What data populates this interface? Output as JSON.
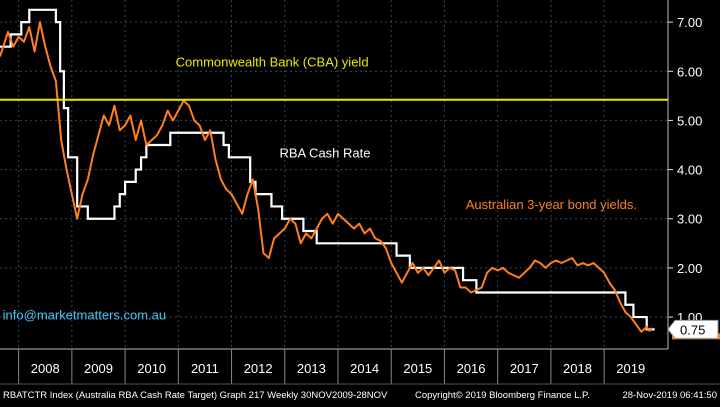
{
  "chart_data": {
    "type": "line",
    "title": "",
    "xlabel": "",
    "ylabel": "",
    "xlim": [
      2007.65,
      2020.2
    ],
    "ylim": [
      0.35,
      7.45
    ],
    "grid": true,
    "x_ticks": [
      "2008",
      "2009",
      "2010",
      "2011",
      "2012",
      "2013",
      "2014",
      "2015",
      "2016",
      "2017",
      "2018",
      "2019"
    ],
    "y_ticks": [
      1.0,
      2.0,
      3.0,
      4.0,
      5.0,
      6.0,
      7.0
    ],
    "y_tick_labels": [
      "1.00",
      "2.00",
      "3.00",
      "4.00",
      "5.00",
      "6.00",
      "7.00"
    ],
    "series": [
      {
        "name": "RBA Cash Rate",
        "color": "#ffffff",
        "style": "step",
        "points": [
          [
            2007.65,
            6.5
          ],
          [
            2007.85,
            6.75
          ],
          [
            2008.05,
            7.0
          ],
          [
            2008.2,
            7.25
          ],
          [
            2008.7,
            7.0
          ],
          [
            2008.78,
            6.0
          ],
          [
            2008.85,
            5.25
          ],
          [
            2008.93,
            4.25
          ],
          [
            2009.1,
            3.25
          ],
          [
            2009.3,
            3.0
          ],
          [
            2009.8,
            3.25
          ],
          [
            2009.9,
            3.5
          ],
          [
            2010.0,
            3.75
          ],
          [
            2010.2,
            4.0
          ],
          [
            2010.3,
            4.25
          ],
          [
            2010.4,
            4.5
          ],
          [
            2010.85,
            4.75
          ],
          [
            2011.85,
            4.5
          ],
          [
            2011.95,
            4.25
          ],
          [
            2012.35,
            3.75
          ],
          [
            2012.45,
            3.5
          ],
          [
            2012.75,
            3.25
          ],
          [
            2012.95,
            3.0
          ],
          [
            2013.35,
            2.75
          ],
          [
            2013.6,
            2.5
          ],
          [
            2015.1,
            2.25
          ],
          [
            2015.35,
            2.0
          ],
          [
            2016.35,
            1.75
          ],
          [
            2016.6,
            1.5
          ],
          [
            2019.4,
            1.25
          ],
          [
            2019.55,
            1.0
          ],
          [
            2019.8,
            0.75
          ],
          [
            2019.95,
            0.75
          ]
        ]
      },
      {
        "name": "Australian 3-year bond yields.",
        "color": "#ff7f1f",
        "style": "line",
        "points": [
          [
            2007.65,
            6.3
          ],
          [
            2007.8,
            6.8
          ],
          [
            2007.9,
            6.5
          ],
          [
            2008.0,
            6.7
          ],
          [
            2008.1,
            6.6
          ],
          [
            2008.2,
            6.9
          ],
          [
            2008.3,
            6.4
          ],
          [
            2008.4,
            7.0
          ],
          [
            2008.5,
            6.5
          ],
          [
            2008.6,
            6.1
          ],
          [
            2008.7,
            5.8
          ],
          [
            2008.8,
            4.6
          ],
          [
            2008.9,
            4.0
          ],
          [
            2009.0,
            3.5
          ],
          [
            2009.1,
            3.0
          ],
          [
            2009.2,
            3.5
          ],
          [
            2009.3,
            3.8
          ],
          [
            2009.4,
            4.3
          ],
          [
            2009.5,
            4.7
          ],
          [
            2009.6,
            5.1
          ],
          [
            2009.7,
            4.9
          ],
          [
            2009.8,
            5.3
          ],
          [
            2009.9,
            4.8
          ],
          [
            2010.0,
            4.9
          ],
          [
            2010.1,
            5.1
          ],
          [
            2010.2,
            4.6
          ],
          [
            2010.3,
            5.0
          ],
          [
            2010.4,
            4.5
          ],
          [
            2010.5,
            4.6
          ],
          [
            2010.6,
            4.7
          ],
          [
            2010.7,
            4.9
          ],
          [
            2010.8,
            5.2
          ],
          [
            2010.9,
            5.0
          ],
          [
            2011.0,
            5.2
          ],
          [
            2011.1,
            5.4
          ],
          [
            2011.2,
            5.3
          ],
          [
            2011.3,
            5.0
          ],
          [
            2011.4,
            4.9
          ],
          [
            2011.5,
            4.6
          ],
          [
            2011.6,
            4.8
          ],
          [
            2011.7,
            4.2
          ],
          [
            2011.8,
            3.8
          ],
          [
            2011.9,
            3.6
          ],
          [
            2012.0,
            3.5
          ],
          [
            2012.1,
            3.3
          ],
          [
            2012.2,
            3.1
          ],
          [
            2012.3,
            3.5
          ],
          [
            2012.4,
            3.8
          ],
          [
            2012.5,
            3.2
          ],
          [
            2012.6,
            2.3
          ],
          [
            2012.7,
            2.2
          ],
          [
            2012.8,
            2.6
          ],
          [
            2012.9,
            2.7
          ],
          [
            2013.0,
            2.8
          ],
          [
            2013.1,
            3.0
          ],
          [
            2013.2,
            2.9
          ],
          [
            2013.3,
            2.5
          ],
          [
            2013.4,
            2.7
          ],
          [
            2013.5,
            2.6
          ],
          [
            2013.6,
            2.8
          ],
          [
            2013.7,
            3.0
          ],
          [
            2013.8,
            3.1
          ],
          [
            2013.9,
            2.9
          ],
          [
            2014.0,
            3.1
          ],
          [
            2014.1,
            3.0
          ],
          [
            2014.2,
            2.9
          ],
          [
            2014.3,
            2.8
          ],
          [
            2014.4,
            2.9
          ],
          [
            2014.5,
            2.7
          ],
          [
            2014.6,
            2.8
          ],
          [
            2014.7,
            2.6
          ],
          [
            2014.8,
            2.55
          ],
          [
            2014.9,
            2.4
          ],
          [
            2015.0,
            2.1
          ],
          [
            2015.1,
            1.9
          ],
          [
            2015.2,
            1.7
          ],
          [
            2015.3,
            1.9
          ],
          [
            2015.4,
            2.1
          ],
          [
            2015.5,
            1.9
          ],
          [
            2015.6,
            2.0
          ],
          [
            2015.7,
            1.85
          ],
          [
            2015.8,
            2.0
          ],
          [
            2015.9,
            2.15
          ],
          [
            2016.0,
            1.9
          ],
          [
            2016.1,
            2.0
          ],
          [
            2016.2,
            1.95
          ],
          [
            2016.3,
            1.6
          ],
          [
            2016.4,
            1.6
          ],
          [
            2016.5,
            1.5
          ],
          [
            2016.6,
            1.55
          ],
          [
            2016.7,
            1.6
          ],
          [
            2016.8,
            1.9
          ],
          [
            2016.9,
            2.0
          ],
          [
            2017.0,
            1.95
          ],
          [
            2017.1,
            2.0
          ],
          [
            2017.2,
            1.9
          ],
          [
            2017.3,
            1.85
          ],
          [
            2017.4,
            1.8
          ],
          [
            2017.5,
            1.9
          ],
          [
            2017.6,
            2.0
          ],
          [
            2017.7,
            2.15
          ],
          [
            2017.8,
            2.1
          ],
          [
            2017.9,
            2.0
          ],
          [
            2018.0,
            2.1
          ],
          [
            2018.1,
            2.15
          ],
          [
            2018.2,
            2.1
          ],
          [
            2018.3,
            2.15
          ],
          [
            2018.4,
            2.2
          ],
          [
            2018.5,
            2.05
          ],
          [
            2018.6,
            2.1
          ],
          [
            2018.7,
            2.05
          ],
          [
            2018.8,
            2.1
          ],
          [
            2018.9,
            2.0
          ],
          [
            2019.0,
            1.9
          ],
          [
            2019.1,
            1.7
          ],
          [
            2019.2,
            1.55
          ],
          [
            2019.3,
            1.3
          ],
          [
            2019.4,
            1.1
          ],
          [
            2019.5,
            1.0
          ],
          [
            2019.6,
            0.85
          ],
          [
            2019.7,
            0.7
          ],
          [
            2019.8,
            0.8
          ],
          [
            2019.85,
            0.72
          ],
          [
            2019.9,
            0.78
          ]
        ]
      },
      {
        "name": "Commonwealth Bank (CBA) yield",
        "color": "#e8e800",
        "style": "hline",
        "value": 5.42
      }
    ],
    "annotations": [
      {
        "text": "Commonwealth Bank (CBA) yield",
        "x": 2010.95,
        "y": 6.1,
        "color": "#e8e800"
      },
      {
        "text": "RBA Cash Rate",
        "x": 2012.9,
        "y": 4.25,
        "color": "#ffffff"
      },
      {
        "text": "Australian 3-year bond yields.",
        "x": 2016.4,
        "y": 3.2,
        "color": "#ff7f1f"
      },
      {
        "text": "info@marketmatters.com.au",
        "x": 2007.7,
        "y": 0.95,
        "color": "#4fc3f7"
      }
    ],
    "last_value_badge": {
      "value": 0.75,
      "label": "0.75",
      "y": 0.75
    }
  },
  "footer": {
    "left": "RBATCTR Index (Australia RBA Cash Rate Target) Graph 217  Weekly 30NOV2009-28NOV",
    "center": "Copyright© 2019 Bloomberg Finance L.P.",
    "right": "28-Nov-2019 06:41:50"
  }
}
